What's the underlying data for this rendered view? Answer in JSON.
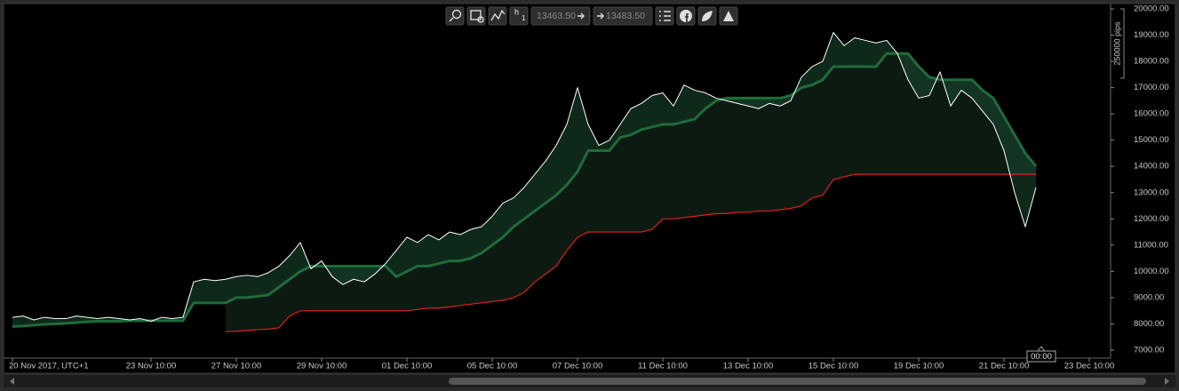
{
  "toolbar": {
    "timeframe": "h",
    "timeframe_count": "1",
    "price_from": "13463.50",
    "price_to": "13483.50"
  },
  "chart_data": {
    "type": "line",
    "categories": [
      "20 Nov 2017, UTC+1",
      null,
      null,
      null,
      null,
      null,
      null,
      null,
      null,
      null,
      null,
      null,
      null,
      "23 Nov 10:00",
      null,
      null,
      null,
      null,
      null,
      null,
      null,
      "27 Nov 10:00",
      null,
      null,
      null,
      null,
      null,
      null,
      null,
      "29 Nov 10:00",
      null,
      null,
      null,
      null,
      null,
      null,
      null,
      "01 Dec 10:00",
      null,
      null,
      null,
      null,
      null,
      null,
      null,
      "05 Dec 10:00",
      null,
      null,
      null,
      null,
      null,
      null,
      null,
      "07 Dec 10:00",
      null,
      null,
      null,
      null,
      null,
      null,
      null,
      "11 Dec 10:00",
      null,
      null,
      null,
      null,
      null,
      null,
      null,
      "13 Dec 10:00",
      null,
      null,
      null,
      null,
      null,
      null,
      null,
      "15 Dec 10:00",
      null,
      null,
      null,
      null,
      null,
      null,
      null,
      "19 Dec 10:00",
      null,
      null,
      null,
      null,
      null,
      null,
      null,
      "21 Dec 10:00",
      null,
      null,
      null,
      null,
      null,
      null,
      null,
      "23 Dec 10:00"
    ],
    "series": [
      {
        "color": "#ffffff",
        "values": [
          8250,
          8300,
          8150,
          8250,
          8200,
          8200,
          8300,
          8250,
          8200,
          8250,
          8200,
          8150,
          8200,
          8100,
          8250,
          8200,
          8250,
          9600,
          9700,
          9650,
          9700,
          9800,
          9850,
          9800,
          9950,
          10200,
          10600,
          11100,
          10100,
          10400,
          9800,
          9500,
          9700,
          9600,
          9900,
          10300,
          10800,
          11300,
          11100,
          11400,
          11200,
          11500,
          11400,
          11600,
          11700,
          12100,
          12600,
          12800,
          13200,
          13700,
          14200,
          14800,
          15600,
          17000,
          15600,
          14800,
          15000,
          15600,
          16200,
          16400,
          16700,
          16800,
          16300,
          17100,
          16900,
          16800,
          16600,
          16500,
          16400,
          16300,
          16200,
          16400,
          16300,
          16500,
          17400,
          17800,
          18000,
          19100,
          18600,
          18900,
          18800,
          18700,
          18800,
          18300,
          17300,
          16600,
          16700,
          17600,
          16300,
          16900,
          16600,
          16100,
          15600,
          14600,
          13000,
          11700,
          13200,
          null,
          null,
          null,
          null,
          null
        ]
      },
      {
        "color": "#1f6b3a",
        "values": [
          7900,
          7920,
          7950,
          7980,
          8000,
          8020,
          8050,
          8080,
          8100,
          8100,
          8100,
          8120,
          8120,
          8120,
          8120,
          8120,
          8120,
          8800,
          8800,
          8800,
          8800,
          9000,
          9000,
          9050,
          9100,
          9400,
          9700,
          10000,
          10200,
          10200,
          10200,
          10200,
          10200,
          10200,
          10200,
          10200,
          9800,
          10000,
          10200,
          10200,
          10300,
          10400,
          10400,
          10500,
          10700,
          11000,
          11300,
          11700,
          12000,
          12300,
          12600,
          12900,
          13300,
          13800,
          14600,
          14600,
          14600,
          15100,
          15200,
          15400,
          15500,
          15600,
          15600,
          15700,
          15800,
          16200,
          16500,
          16600,
          16600,
          16600,
          16600,
          16600,
          16600,
          16700,
          17000,
          17100,
          17300,
          17800,
          17800,
          17800,
          17800,
          17800,
          18300,
          18300,
          18300,
          17800,
          17400,
          17300,
          17300,
          17300,
          17300,
          16900,
          16600,
          15900,
          15200,
          14500,
          14000,
          null,
          null,
          null,
          null,
          null
        ]
      },
      {
        "color": "#e02020",
        "values": [
          null,
          null,
          null,
          null,
          null,
          null,
          null,
          null,
          null,
          null,
          null,
          null,
          null,
          null,
          null,
          null,
          null,
          null,
          null,
          null,
          7700,
          7720,
          7750,
          7780,
          7800,
          7850,
          8300,
          8500,
          8500,
          8500,
          8500,
          8500,
          8500,
          8500,
          8500,
          8500,
          8500,
          8500,
          8550,
          8600,
          8600,
          8650,
          8700,
          8750,
          8800,
          8850,
          8900,
          9000,
          9200,
          9600,
          9900,
          10200,
          10800,
          11300,
          11500,
          11500,
          11500,
          11500,
          11500,
          11500,
          11600,
          12000,
          12000,
          12050,
          12100,
          12150,
          12200,
          12200,
          12250,
          12250,
          12300,
          12300,
          12350,
          12400,
          12500,
          12800,
          12900,
          13500,
          13600,
          13700,
          13700,
          13700,
          13700,
          13700,
          13700,
          13700,
          13700,
          13700,
          13700,
          13700,
          13700,
          13700,
          13700,
          13700,
          13700,
          13700,
          13700,
          null,
          null,
          null,
          null,
          null
        ]
      }
    ],
    "ylim": [
      7000,
      20000
    ],
    "yticks": [
      {
        "value": 7000,
        "label": "7000.00"
      },
      {
        "value": 8000,
        "label": "8000.00"
      },
      {
        "value": 9000,
        "label": "9000.00"
      },
      {
        "value": 10000,
        "label": "10000.00"
      },
      {
        "value": 11000,
        "label": "11000.00"
      },
      {
        "value": 12000,
        "label": "12000.00"
      },
      {
        "value": 13000,
        "label": "13000.00"
      },
      {
        "value": 14000,
        "label": "14000.00"
      },
      {
        "value": 15000,
        "label": "15000.00"
      },
      {
        "value": 16000,
        "label": "16000.00"
      },
      {
        "value": 17000,
        "label": "17000.00"
      },
      {
        "value": 18000,
        "label": "18000.00"
      },
      {
        "value": 19000,
        "label": "19000.00"
      },
      {
        "value": 20000,
        "label": "20000.00"
      }
    ],
    "grid": false,
    "y_scale_label": "250000 pips",
    "cursor_label": "00:00"
  }
}
